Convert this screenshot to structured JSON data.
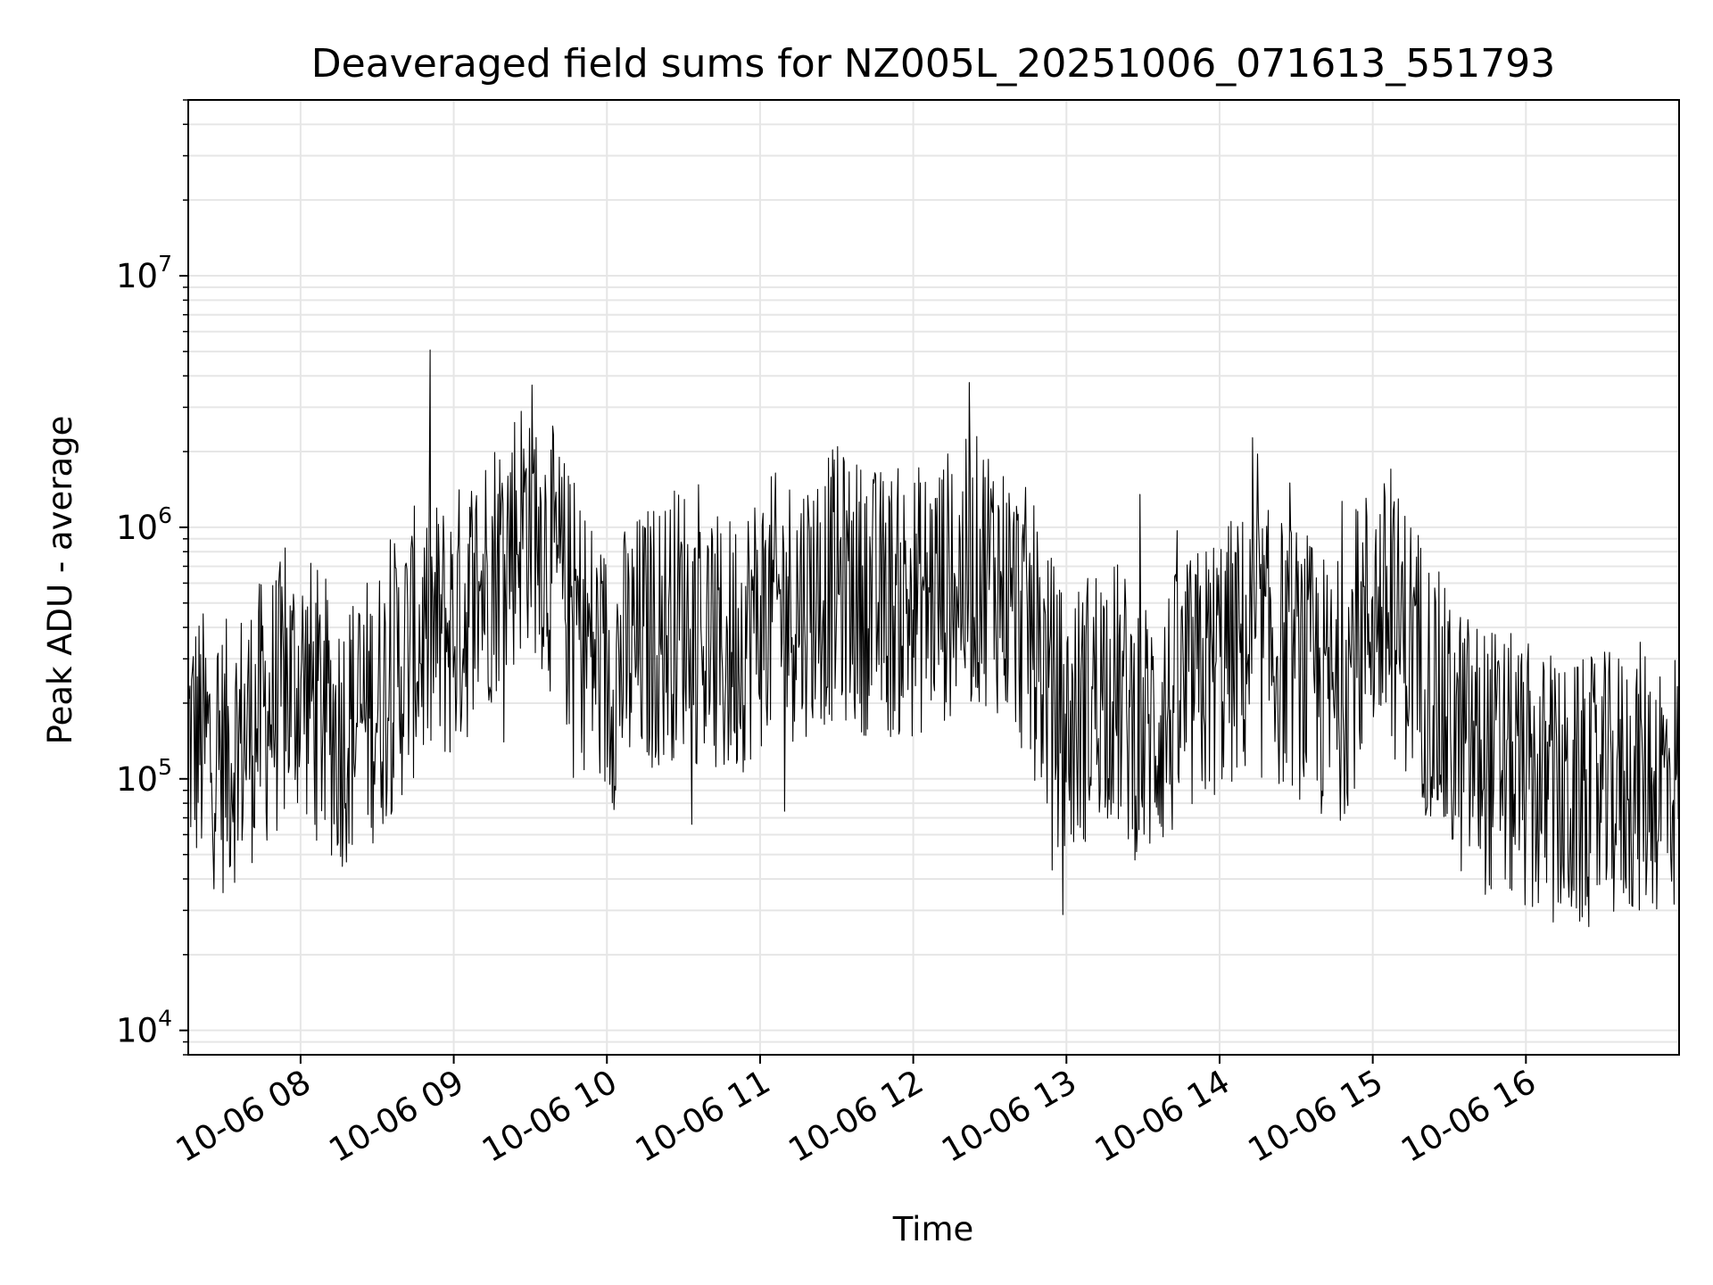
{
  "chart_data": {
    "type": "line",
    "title": "Deaveraged field sums for NZ005L_20251006_071613_551793",
    "xlabel": "Time",
    "ylabel": "Peak ADU - average",
    "yscale": "log",
    "ylim": [
      8000,
      50000000
    ],
    "xlim": [
      "2025-10-06 07:16",
      "2025-10-06 17:00"
    ],
    "grid": true,
    "line_color": "#000000",
    "x_ticks": [
      "10-06 08",
      "10-06 09",
      "10-06 10",
      "10-06 11",
      "10-06 12",
      "10-06 13",
      "10-06 14",
      "10-06 15",
      "10-06 16"
    ],
    "y_ticks": [
      {
        "base": "10",
        "exp": "4",
        "value": 10000
      },
      {
        "base": "10",
        "exp": "5",
        "value": 100000
      },
      {
        "base": "10",
        "exp": "6",
        "value": 1000000
      },
      {
        "base": "10",
        "exp": "7",
        "value": 10000000
      }
    ],
    "series": [
      {
        "x": [
          "2025-10-06 07:16",
          "2025-10-06 07:30",
          "2025-10-06 07:45",
          "2025-10-06 08:00",
          "2025-10-06 08:15",
          "2025-10-06 08:30",
          "2025-10-06 08:45",
          "2025-10-06 09:00",
          "2025-10-06 09:15",
          "2025-10-06 09:30",
          "2025-10-06 09:45",
          "2025-10-06 10:00",
          "2025-10-06 10:15",
          "2025-10-06 10:30",
          "2025-10-06 10:45",
          "2025-10-06 11:00",
          "2025-10-06 11:15",
          "2025-10-06 11:30",
          "2025-10-06 11:45",
          "2025-10-06 12:00",
          "2025-10-06 12:15",
          "2025-10-06 12:30",
          "2025-10-06 12:45",
          "2025-10-06 13:00",
          "2025-10-06 13:15",
          "2025-10-06 13:30",
          "2025-10-06 13:45",
          "2025-10-06 14:00",
          "2025-10-06 14:15",
          "2025-10-06 14:30",
          "2025-10-06 14:45",
          "2025-10-06 15:00",
          "2025-10-06 15:15",
          "2025-10-06 15:30",
          "2025-10-06 15:45",
          "2025-10-06 16:00",
          "2025-10-06 16:15",
          "2025-10-06 16:30",
          "2025-10-06 16:45",
          "2025-10-06 17:00"
        ],
        "values": [
          150000,
          120000,
          180000,
          250000,
          150000,
          200000,
          350000,
          400000,
          700000,
          1200000,
          500000,
          250000,
          350000,
          450000,
          300000,
          450000,
          500000,
          600000,
          500000,
          500000,
          600000,
          700000,
          400000,
          150000,
          250000,
          150000,
          200000,
          300000,
          350000,
          300000,
          200000,
          500000,
          350000,
          150000,
          120000,
          100000,
          80000,
          90000,
          100000,
          100000
        ]
      }
    ]
  }
}
